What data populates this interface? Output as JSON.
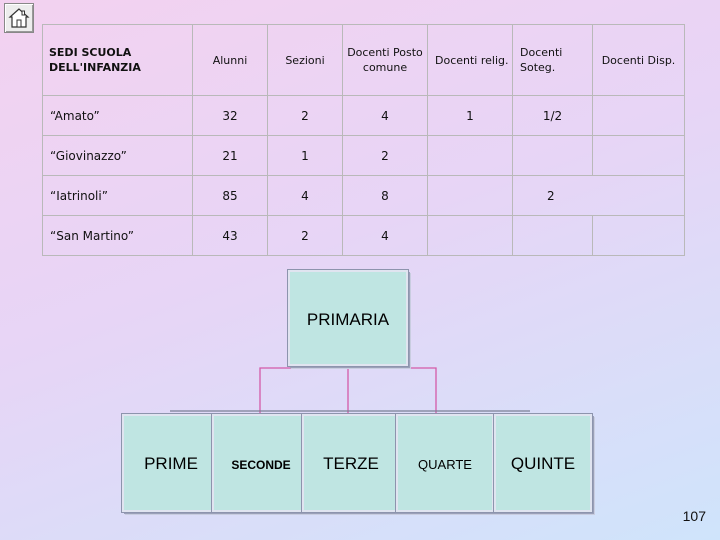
{
  "nav": {
    "home_icon": "home-icon"
  },
  "table": {
    "headers": [
      "SEDI SCUOLA DELL'INFANZIA",
      "Alunni",
      "Sezioni",
      "Docenti Posto comune",
      "Docenti relig.",
      "Docenti Soteg.",
      "Docenti Disp."
    ],
    "rows": [
      {
        "sede": "“Amato”",
        "alunni": "32",
        "sezioni": "2",
        "posto_comune": "4",
        "relig": "1",
        "soteg": "1/2",
        "disp": ""
      },
      {
        "sede": "“Giovinazzo”",
        "alunni": "21",
        "sezioni": "1",
        "posto_comune": "2",
        "relig": "",
        "soteg": "",
        "disp": ""
      },
      {
        "sede": "“Iatrinoli”",
        "alunni": "85",
        "sezioni": "4",
        "posto_comune": "8",
        "relig": "",
        "soteg": "2",
        "disp": ""
      },
      {
        "sede": "“San Martino”",
        "alunni": "43",
        "sezioni": "2",
        "posto_comune": "4",
        "relig": "",
        "soteg": "",
        "disp": ""
      }
    ]
  },
  "org_chart": {
    "root": "PRIMARIA",
    "children": [
      "PRIME",
      "SECONDE",
      "TERZE",
      "QUARTE",
      "QUINTE"
    ]
  },
  "page_number": "107"
}
